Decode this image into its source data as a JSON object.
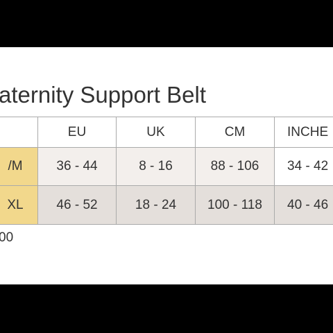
{
  "title": "aternity Support Belt",
  "table": {
    "header": [
      "EU",
      "UK",
      "CM",
      "INCHE"
    ],
    "rows": [
      [
        "/M",
        "36 - 44",
        "8 - 16",
        "88 - 106",
        "34 - 42"
      ],
      [
        "XL",
        "46 - 52",
        "18 - 24",
        "100 - 118",
        "40 - 46"
      ]
    ]
  },
  "footnote": "00"
}
